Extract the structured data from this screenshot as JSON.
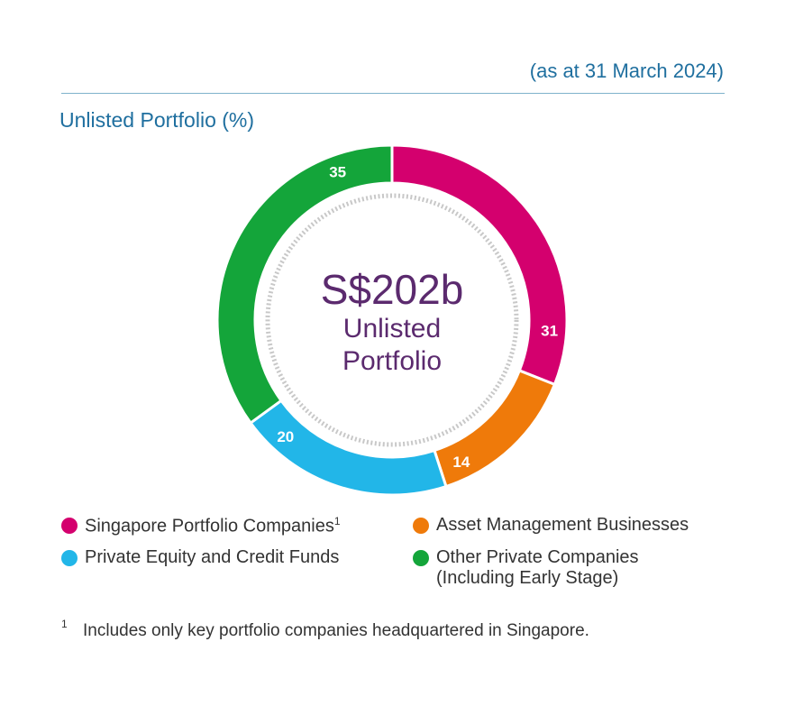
{
  "header": {
    "date_note": "(as at 31 March 2024)",
    "title": "Unlisted Portfolio (%)"
  },
  "center": {
    "amount": "S$202b",
    "line1": "Unlisted",
    "line2": "Portfolio"
  },
  "chart_data": {
    "type": "pie",
    "title": "Unlisted Portfolio (%)",
    "categories": [
      "Singapore Portfolio Companies",
      "Asset Management Businesses",
      "Private Equity and Credit Funds",
      "Other Private Companies (Including Early Stage)"
    ],
    "values": [
      31,
      14,
      20,
      35
    ],
    "colors": [
      "#d4006e",
      "#ef7a0a",
      "#22b6e8",
      "#14a53a"
    ],
    "legend_position": "bottom"
  },
  "legend": {
    "singapore": "Singapore Portfolio Companies",
    "singapore_sup": "1",
    "asset": "Asset Management Businesses",
    "private_equity": "Private Equity and Credit Funds",
    "other_line1": "Other Private Companies",
    "other_line2": "(Including Early Stage)"
  },
  "footnote": {
    "mark": "1",
    "text": "Includes only key portfolio companies headquartered in Singapore."
  }
}
